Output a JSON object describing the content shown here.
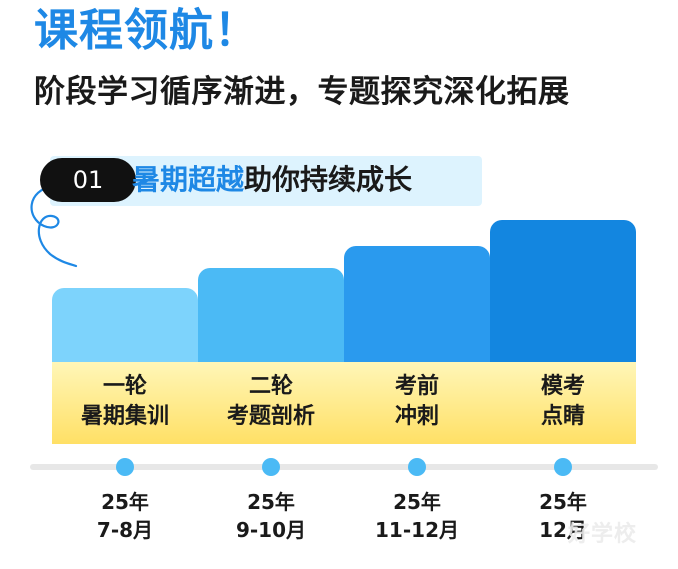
{
  "header": {
    "title": "课程领航！",
    "subtitle": "阶段学习循序渐进，专题探究深化拓展"
  },
  "stage": {
    "number": "01",
    "title_highlight": "暑期超越",
    "title_rest": "助你持续成长"
  },
  "phases": [
    {
      "line1": "一轮",
      "line2": "暑期集训",
      "year": "25年",
      "period": "7-8月",
      "color": "#7DD3FC"
    },
    {
      "line1": "二轮",
      "line2": "考题剖析",
      "year": "25年",
      "period": "9-10月",
      "color": "#4BBAF5"
    },
    {
      "line1": "考前",
      "line2": "冲刺",
      "year": "25年",
      "period": "11-12月",
      "color": "#2A9AEE"
    },
    {
      "line1": "模考",
      "line2": "点睛",
      "year": "25年",
      "period": "12月",
      "color": "#1386E0"
    }
  ],
  "watermark": "好学校",
  "colors": {
    "title_blue": "#1E88E5",
    "banner_bg": "#DDF3FE",
    "label_yellow": "#FFE066",
    "timeline_gray": "#E7E7E7",
    "dot_blue": "#4BBAF5"
  }
}
